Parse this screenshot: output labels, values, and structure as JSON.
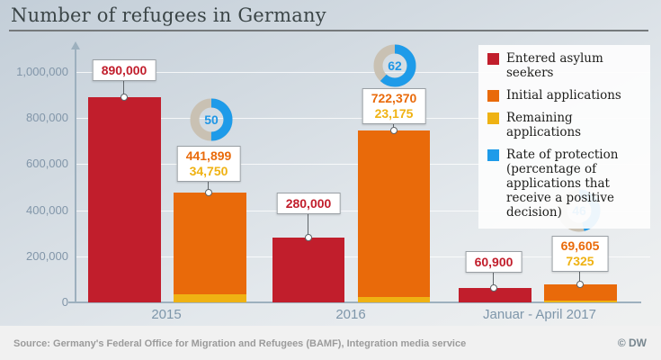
{
  "header": {
    "title": "Number of refugees in Germany"
  },
  "legend": {
    "items": [
      {
        "label": "Entered asylum seekers",
        "color": "#c11e2c"
      },
      {
        "label": "Initial applications",
        "color": "#e96a0a"
      },
      {
        "label": "Remaining applications",
        "color": "#efb213"
      },
      {
        "label": "Rate of protection (percentage of applications that receive a positive decision)",
        "color": "#1e9be9"
      }
    ]
  },
  "chart_data": {
    "type": "bar",
    "title": "Number of refugees in Germany",
    "categories": [
      "2015",
      "2016",
      "Januar - April 2017"
    ],
    "series": [
      {
        "name": "Entered asylum seekers",
        "color": "#c11e2c",
        "values": [
          890000,
          280000,
          60900
        ],
        "labels": [
          "890,000",
          "280,000",
          "60,900"
        ]
      },
      {
        "name": "Initial applications",
        "color": "#e96a0a",
        "values": [
          441899,
          722370,
          69605
        ],
        "labels": [
          "441,899",
          "722,370",
          "69,605"
        ],
        "stacked_on": "Remaining applications"
      },
      {
        "name": "Remaining applications",
        "color": "#efb213",
        "values": [
          34750,
          23175,
          7325
        ],
        "labels": [
          "34,750",
          "23,175",
          "7325"
        ]
      },
      {
        "name": "Rate of protection",
        "display": "donut",
        "unit": "%",
        "color": "#1e9be9",
        "track_color": "#c9c1b3",
        "text_color": "#1e96e6",
        "values": [
          50,
          62,
          46
        ],
        "labels": [
          "50",
          "62",
          "46"
        ]
      }
    ],
    "ylim": [
      0,
      1000000
    ],
    "yticks": [
      {
        "value": 1000000,
        "label": "1,000,000"
      },
      {
        "value": 800000,
        "label": "800,000"
      },
      {
        "value": 600000,
        "label": "600,000"
      },
      {
        "value": 400000,
        "label": "400,000"
      },
      {
        "value": 200000,
        "label": "200,000"
      },
      {
        "value": 0,
        "label": "0"
      }
    ],
    "grid": true,
    "legend_position": "top-right"
  },
  "footer": {
    "source": "Source: Germany's Federal Office for Migration and Refugees (BAMF), Integration media service",
    "copyright": "© DW"
  }
}
